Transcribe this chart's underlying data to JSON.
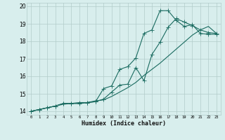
{
  "xlabel": "Humidex (Indice chaleur)",
  "xlim": [
    -0.5,
    23.5
  ],
  "ylim": [
    13.8,
    20.2
  ],
  "yticks": [
    14,
    15,
    16,
    17,
    18,
    19,
    20
  ],
  "xticks": [
    0,
    1,
    2,
    3,
    4,
    5,
    6,
    7,
    8,
    9,
    10,
    11,
    12,
    13,
    14,
    15,
    16,
    17,
    18,
    19,
    20,
    21,
    22,
    23
  ],
  "xtick_labels": [
    "0",
    "1",
    "2",
    "3",
    "4",
    "5",
    "6",
    "7",
    "8",
    "9",
    "10",
    "11",
    "12",
    "13",
    "14",
    "15",
    "16",
    "17",
    "18",
    "19",
    "20",
    "21",
    "22",
    "23"
  ],
  "bg_color": "#d8eeed",
  "grid_color": "#b2ccca",
  "line_color": "#1a6b60",
  "curve1_x": [
    0,
    1,
    2,
    3,
    4,
    5,
    6,
    7,
    8,
    9,
    10,
    11,
    12,
    13,
    14,
    15,
    16,
    17,
    18,
    19,
    20,
    21,
    22,
    23
  ],
  "curve1_y": [
    14.0,
    14.1,
    14.2,
    14.3,
    14.4,
    14.45,
    14.45,
    14.5,
    14.6,
    14.65,
    14.85,
    15.1,
    15.35,
    15.65,
    16.05,
    16.4,
    16.75,
    17.15,
    17.55,
    17.95,
    18.35,
    18.65,
    18.85,
    18.45
  ],
  "curve2_x": [
    0,
    1,
    2,
    3,
    4,
    5,
    6,
    7,
    8,
    9,
    10,
    11,
    12,
    13,
    14,
    15,
    16,
    17,
    18,
    19,
    20,
    21,
    22,
    23
  ],
  "curve2_y": [
    14.0,
    14.1,
    14.2,
    14.3,
    14.45,
    14.45,
    14.5,
    14.5,
    14.55,
    14.7,
    15.1,
    15.5,
    15.55,
    16.5,
    15.75,
    17.25,
    17.95,
    18.8,
    19.3,
    19.1,
    18.9,
    18.65,
    18.5,
    18.45
  ],
  "curve3_x": [
    0,
    1,
    2,
    3,
    4,
    5,
    6,
    7,
    8,
    9,
    10,
    11,
    12,
    13,
    14,
    15,
    16,
    17,
    18,
    19,
    20,
    21,
    22,
    23
  ],
  "curve3_y": [
    14.0,
    14.1,
    14.2,
    14.3,
    14.45,
    14.45,
    14.45,
    14.5,
    14.55,
    15.3,
    15.45,
    16.4,
    16.55,
    17.05,
    18.45,
    18.65,
    19.75,
    19.75,
    19.2,
    18.85,
    18.95,
    18.45,
    18.4,
    18.4
  ],
  "lw": 0.8,
  "ms": 2.5
}
